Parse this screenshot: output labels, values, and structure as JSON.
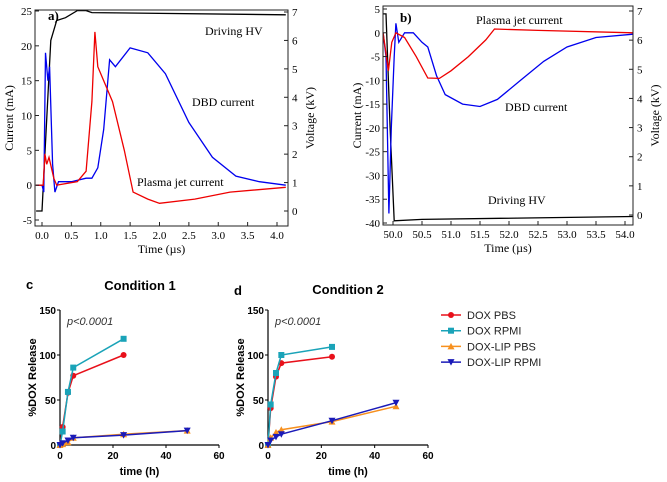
{
  "chart_data": [
    {
      "panel": "a)",
      "type": "line",
      "xlabel": "Time (µs)",
      "ylabel": "Current (mA)",
      "y2label": "Voltage (kV)",
      "xlim": [
        -0.1,
        4.15
      ],
      "ylim": [
        -5,
        25
      ],
      "y2lim": [
        -0.3,
        7.1
      ],
      "xticks": [
        "0.0",
        "0.5",
        "1.0",
        "1.5",
        "2.0",
        "2.5",
        "3.0",
        "3.5",
        "4.0"
      ],
      "xtickvals": [
        0,
        0.5,
        1,
        1.5,
        2,
        2.5,
        3,
        3.5,
        4
      ],
      "yticks": [
        -5,
        0,
        5,
        10,
        15,
        20,
        25
      ],
      "y2ticks": [
        0,
        1,
        2,
        3,
        4,
        5,
        6,
        7
      ],
      "series": [
        {
          "name": "Driving HV",
          "color": "#000000",
          "axis": "y2",
          "points": [
            [
              -0.1,
              0
            ],
            [
              0,
              0
            ],
            [
              0.05,
              2
            ],
            [
              0.15,
              6
            ],
            [
              0.25,
              6.7
            ],
            [
              0.4,
              6.8
            ],
            [
              0.6,
              7.05
            ],
            [
              0.75,
              7.05
            ],
            [
              0.85,
              6.98
            ],
            [
              4.15,
              6.9
            ]
          ]
        },
        {
          "name": "DBD current",
          "color": "#0000ee",
          "axis": "y",
          "points": [
            [
              -0.1,
              0
            ],
            [
              0,
              0
            ],
            [
              0.03,
              -1
            ],
            [
              0.06,
              19
            ],
            [
              0.1,
              15
            ],
            [
              0.13,
              17
            ],
            [
              0.18,
              3
            ],
            [
              0.22,
              -1
            ],
            [
              0.28,
              0.5
            ],
            [
              0.5,
              0.5
            ],
            [
              0.75,
              1
            ],
            [
              0.85,
              1
            ],
            [
              0.95,
              2.5
            ],
            [
              1.05,
              8
            ],
            [
              1.15,
              18
            ],
            [
              1.25,
              17
            ],
            [
              1.5,
              19.7
            ],
            [
              1.8,
              19
            ],
            [
              2.1,
              16
            ],
            [
              2.5,
              9
            ],
            [
              2.9,
              4
            ],
            [
              3.3,
              1.3
            ],
            [
              3.7,
              0.5
            ],
            [
              4.15,
              0
            ]
          ]
        },
        {
          "name": "Plasma jet current",
          "color": "#ee0000",
          "axis": "y",
          "points": [
            [
              -0.1,
              0
            ],
            [
              0.02,
              0
            ],
            [
              0.05,
              4.5
            ],
            [
              0.08,
              3
            ],
            [
              0.12,
              4
            ],
            [
              0.2,
              1
            ],
            [
              0.25,
              0
            ],
            [
              0.6,
              0.5
            ],
            [
              0.75,
              2
            ],
            [
              0.85,
              12
            ],
            [
              0.9,
              22
            ],
            [
              0.95,
              17
            ],
            [
              1.2,
              12
            ],
            [
              1.4,
              5
            ],
            [
              1.55,
              -1
            ],
            [
              1.8,
              -2
            ],
            [
              2.0,
              -2.6
            ],
            [
              2.6,
              -2
            ],
            [
              3.2,
              -1
            ],
            [
              4.15,
              -0.3
            ]
          ]
        }
      ]
    },
    {
      "panel": "b)",
      "type": "line",
      "xlabel": "Time (µs)",
      "ylabel": "Current (mA)",
      "y2label": "Voltage (kV)",
      "xlim": [
        49.83,
        54.14
      ],
      "ylim": [
        -40,
        5
      ],
      "y2lim": [
        -0.1,
        7
      ],
      "xticks": [
        "50.0",
        "50.5",
        "51.0",
        "51.5",
        "52.0",
        "52.5",
        "53.0",
        "53.5",
        "54.0"
      ],
      "xtickvals": [
        50,
        50.5,
        51,
        51.5,
        52,
        52.5,
        53,
        53.5,
        54
      ],
      "yticks": [
        -40,
        -35,
        -30,
        -25,
        -20,
        -15,
        -10,
        -5,
        0,
        5
      ],
      "y2ticks": [
        0,
        1,
        2,
        3,
        4,
        5,
        6,
        7
      ],
      "series": [
        {
          "name": "Driving HV",
          "color": "#000000",
          "axis": "y2",
          "points": [
            [
              49.83,
              6.9
            ],
            [
              49.88,
              6.9
            ],
            [
              49.95,
              3
            ],
            [
              50.02,
              -0.2
            ],
            [
              50.5,
              -0.15
            ],
            [
              54.14,
              -0.05
            ]
          ]
        },
        {
          "name": "DBD current",
          "color": "#0000ee",
          "axis": "y",
          "points": [
            [
              49.83,
              0
            ],
            [
              49.88,
              -5
            ],
            [
              49.93,
              -38
            ],
            [
              49.97,
              -20
            ],
            [
              50.02,
              -5
            ],
            [
              50.05,
              2
            ],
            [
              50.1,
              -2
            ],
            [
              50.2,
              0
            ],
            [
              50.35,
              0
            ],
            [
              50.5,
              -2
            ],
            [
              50.6,
              -3
            ],
            [
              50.75,
              -9
            ],
            [
              50.9,
              -13
            ],
            [
              51.2,
              -15
            ],
            [
              51.5,
              -15.5
            ],
            [
              51.8,
              -14
            ],
            [
              52.2,
              -10
            ],
            [
              52.6,
              -6
            ],
            [
              53,
              -3
            ],
            [
              53.5,
              -1
            ],
            [
              54.14,
              -0.3
            ]
          ]
        },
        {
          "name": "Plasma jet current",
          "color": "#ee0000",
          "axis": "y",
          "points": [
            [
              49.83,
              0
            ],
            [
              49.92,
              -8
            ],
            [
              49.98,
              -2
            ],
            [
              50.05,
              0
            ],
            [
              50.2,
              -1
            ],
            [
              50.4,
              -5
            ],
            [
              50.6,
              -9.5
            ],
            [
              50.8,
              -9.6
            ],
            [
              51,
              -8
            ],
            [
              51.3,
              -5
            ],
            [
              51.6,
              -1.5
            ],
            [
              51.75,
              0.8
            ],
            [
              52.5,
              0.5
            ],
            [
              54.14,
              0
            ]
          ]
        }
      ]
    },
    {
      "panel": "c",
      "type": "line",
      "title": "Condition 1",
      "annotation": "p<0.0001",
      "xlabel": "time (h)",
      "ylabel": "%DOX Release",
      "xlim": [
        0,
        60
      ],
      "ylim": [
        0,
        150
      ],
      "xticks": [
        0,
        20,
        40,
        60
      ],
      "yticks": [
        0,
        50,
        100,
        150
      ],
      "series": [
        {
          "name": "DOX PBS",
          "color": "#e8101a",
          "marker": "circle",
          "x": [
            0,
            1,
            3,
            5,
            24
          ],
          "y": [
            0,
            20,
            58,
            77,
            100
          ]
        },
        {
          "name": "DOX RPMI",
          "color": "#1aa3b8",
          "marker": "square",
          "x": [
            0,
            1,
            3,
            5,
            24
          ],
          "y": [
            0,
            15,
            59,
            86,
            118
          ]
        },
        {
          "name": "DOX-LIP PBS",
          "color": "#f7901e",
          "marker": "triangle-up",
          "x": [
            0,
            1,
            3,
            5,
            24,
            48
          ],
          "y": [
            0,
            1,
            3,
            8,
            12,
            16
          ]
        },
        {
          "name": "DOX-LIP RPMI",
          "color": "#1a1ab8",
          "marker": "triangle-down",
          "x": [
            0,
            1,
            3,
            5,
            24,
            48
          ],
          "y": [
            0,
            2,
            5,
            8,
            11,
            16
          ]
        }
      ]
    },
    {
      "panel": "d",
      "type": "line",
      "title": "Condition 2",
      "annotation": "p<0.0001",
      "xlabel": "time (h)",
      "ylabel": "%DOX Release",
      "xlim": [
        0,
        60
      ],
      "ylim": [
        0,
        150
      ],
      "xticks": [
        0,
        20,
        40,
        60
      ],
      "yticks": [
        0,
        50,
        100,
        150
      ],
      "legend": "right",
      "series": [
        {
          "name": "DOX PBS",
          "color": "#e8101a",
          "marker": "circle",
          "x": [
            0,
            1,
            3,
            5,
            24
          ],
          "y": [
            0,
            41,
            76,
            91,
            98
          ]
        },
        {
          "name": "DOX RPMI",
          "color": "#1aa3b8",
          "marker": "square",
          "x": [
            0,
            1,
            3,
            5,
            24
          ],
          "y": [
            0,
            45,
            80,
            100,
            109
          ]
        },
        {
          "name": "DOX-LIP PBS",
          "color": "#f7901e",
          "marker": "triangle-up",
          "x": [
            0,
            1,
            3,
            5,
            24,
            48
          ],
          "y": [
            0,
            8,
            14,
            17,
            26,
            43
          ]
        },
        {
          "name": "DOX-LIP RPMI",
          "color": "#1a1ab8",
          "marker": "triangle-down",
          "x": [
            0,
            1,
            3,
            5,
            24,
            48
          ],
          "y": [
            0,
            5,
            9,
            12,
            27,
            47
          ]
        }
      ]
    }
  ],
  "labels": {
    "a_hv": "Driving HV",
    "a_dbd": "DBD current",
    "a_pj": "Plasma jet current",
    "b_pj": "Plasma jet current",
    "b_dbd": "DBD current",
    "b_hv": "Driving HV"
  }
}
